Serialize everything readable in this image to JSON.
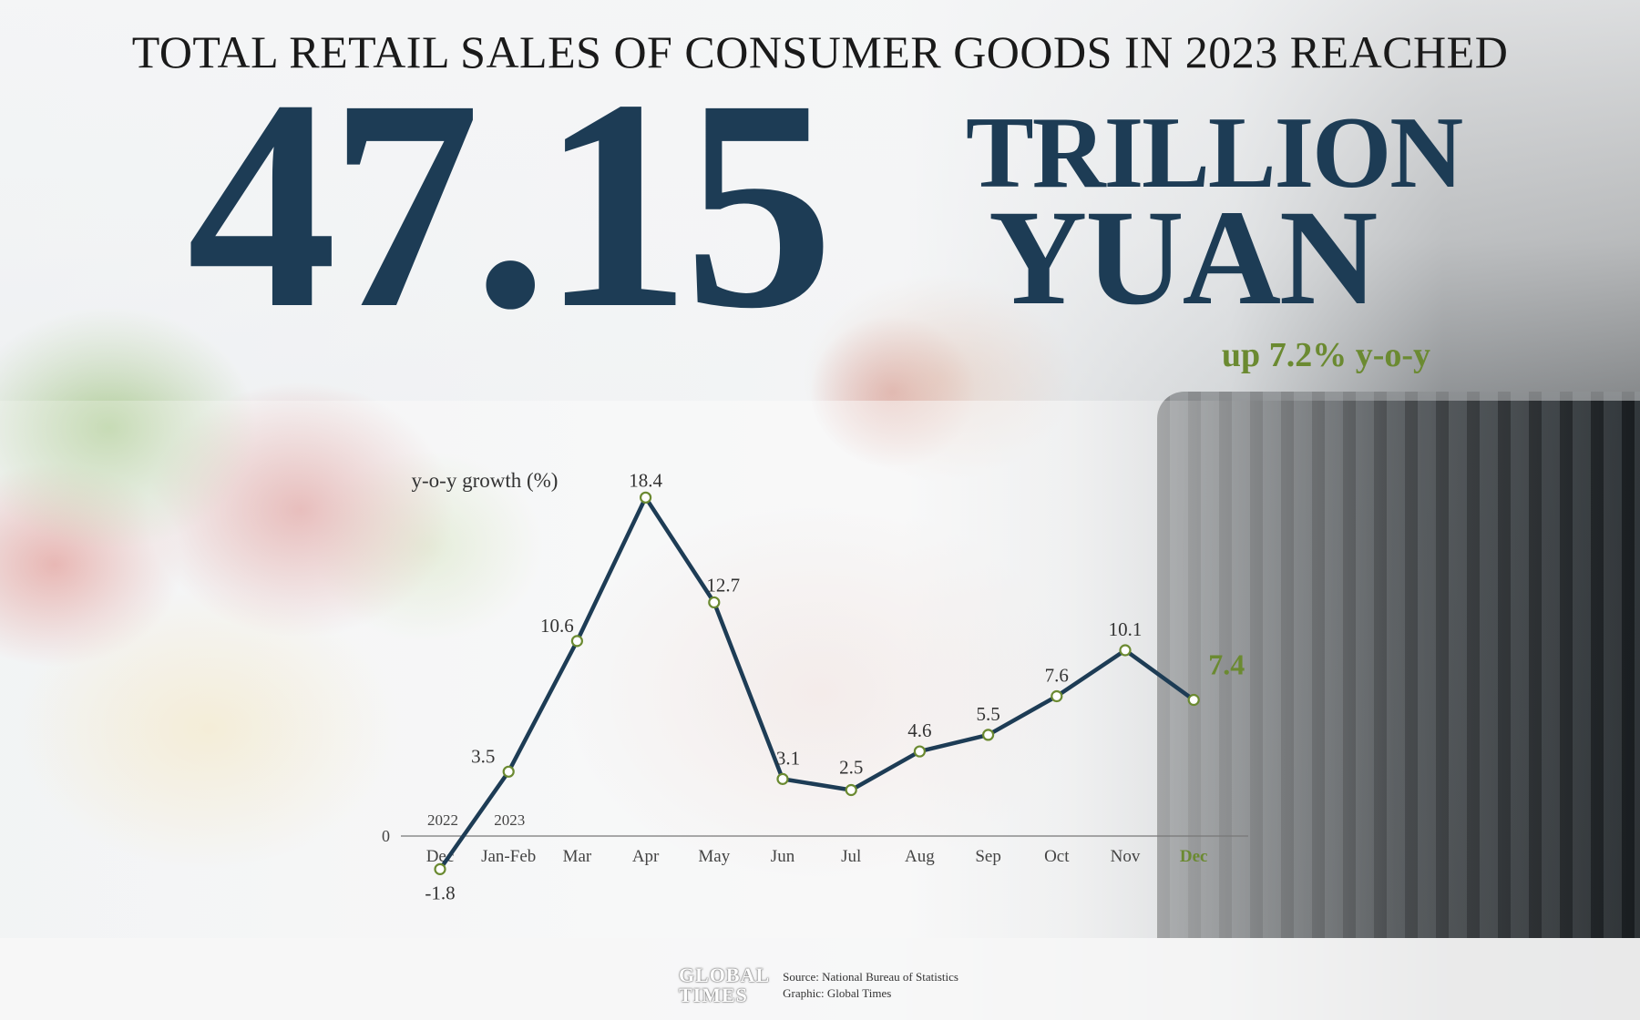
{
  "headline": "TOTAL RETAIL SALES OF CONSUMER GOODS IN 2023 REACHED",
  "big_number": "47.15",
  "unit_line1": "TRILLION",
  "unit_line2": "YUAN",
  "growth_note": "up 7.2% y-o-y",
  "footer": {
    "logo_line1": "GLOBAL",
    "logo_line2": "TIMES",
    "source": "Source: National Bureau of Statistics",
    "graphic": "Graphic: Global Times"
  },
  "colors": {
    "navy": "#1d3c55",
    "olive": "#6b8a31"
  },
  "chart_data": {
    "type": "line",
    "ylabel": "y-o-y growth (%)",
    "zero_label": "0",
    "year_labels": [
      "2022",
      "2023"
    ],
    "categories": [
      "Dec",
      "Jan-Feb",
      "Mar",
      "Apr",
      "May",
      "Jun",
      "Jul",
      "Aug",
      "Sep",
      "Oct",
      "Nov",
      "Dec"
    ],
    "values": [
      -1.8,
      3.5,
      10.6,
      18.4,
      12.7,
      3.1,
      2.5,
      4.6,
      5.5,
      7.6,
      10.1,
      7.4
    ],
    "value_labels": [
      "-1.8",
      "3.5",
      "10.6",
      "18.4",
      "12.7",
      "3.1",
      "2.5",
      "4.6",
      "5.5",
      "7.6",
      "10.1",
      "7.4"
    ],
    "highlight_index": 11,
    "grid": false
  }
}
